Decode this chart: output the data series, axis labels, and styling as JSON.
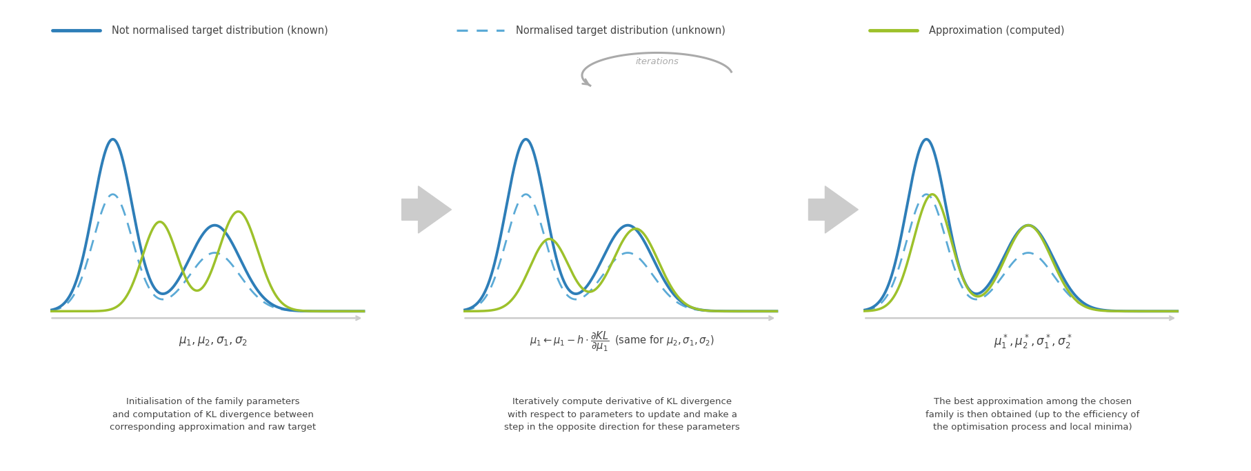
{
  "blue_solid_color": "#2E7EB8",
  "blue_dashed_color": "#5BAAD6",
  "green_color": "#9DC12B",
  "arrow_color": "#BBBBBB",
  "text_color": "#444444",
  "bg_color": "#FFFFFF",
  "legend_labels": [
    "Not normalised target distribution (known)",
    "Normalised target distribution (unknown)",
    "Approximation (computed)"
  ],
  "bottom_texts": [
    "Initialisation of the family parameters\nand computation of KL divergence between\ncorresponding approximation and raw target",
    "Iteratively compute derivative of KL divergence\nwith respect to parameters to update and make a\nstep in the opposite direction for these parameters",
    "The best approximation among the chosen\nfamily is then obtained (up to the efficiency of\nthe optimisation process and local minima)"
  ],
  "iterations_text": "iterations"
}
